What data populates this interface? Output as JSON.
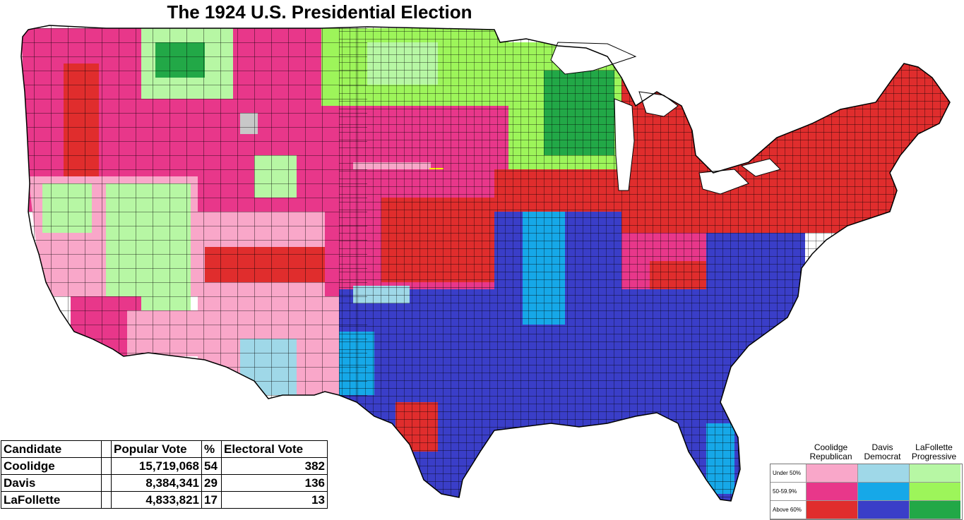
{
  "title": "The 1924 U.S. Presidential Election",
  "table": {
    "headers": [
      "Candidate",
      "Popular Vote",
      "%",
      "Electoral Vote"
    ],
    "rows": [
      {
        "candidate": "Coolidge",
        "popular_vote": "15,719,068",
        "percent": "54",
        "electoral_vote": "382"
      },
      {
        "candidate": "Davis",
        "popular_vote": "8,384,341",
        "percent": "29",
        "electoral_vote": "136"
      },
      {
        "candidate": "LaFollette",
        "popular_vote": "4,833,821",
        "percent": "17",
        "electoral_vote": "13"
      }
    ]
  },
  "legend": {
    "parties": [
      {
        "line1": "Coolidge",
        "line2": "Republican"
      },
      {
        "line1": "Davis",
        "line2": "Democrat"
      },
      {
        "line1": "LaFollette",
        "line2": "Progressive"
      }
    ],
    "levels": [
      "Under 50%",
      "50-59.9%",
      "Above 60%"
    ],
    "colors": [
      [
        "#f9a7c9",
        "#9fd8e8",
        "#b7f7a4"
      ],
      [
        "#e8378a",
        "#16a8e8",
        "#9df55a"
      ],
      [
        "#e02d2d",
        "#3a3ec8",
        "#22a847"
      ]
    ]
  },
  "map_colors": {
    "rep_low": "#f9a7c9",
    "rep_mid": "#e8378a",
    "rep_high": "#e02d2d",
    "dem_low": "#9fd8e8",
    "dem_mid": "#16a8e8",
    "dem_high": "#3a3ec8",
    "pro_low": "#b7f7a4",
    "pro_mid": "#9df55a",
    "pro_high": "#22a847",
    "tie": "#f5f500",
    "no_data": "#c8c8c8"
  }
}
